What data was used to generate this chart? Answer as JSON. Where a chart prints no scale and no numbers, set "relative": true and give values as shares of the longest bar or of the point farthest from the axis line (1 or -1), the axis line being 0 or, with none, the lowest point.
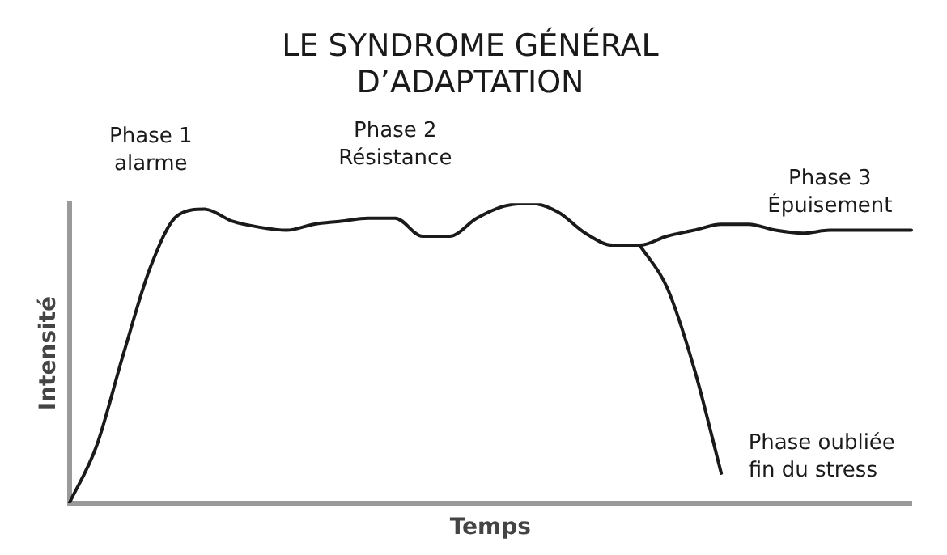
{
  "chart_data": {
    "type": "line",
    "title": "LE SYNDROME GÉNÉRAL\nD’ADAPTATION",
    "xlabel": "Temps",
    "ylabel": "Intensité",
    "relative": true,
    "grid": false,
    "legend": false,
    "marker": "none",
    "line_style": "solid",
    "categories": [
      null,
      null,
      null,
      null,
      null,
      null,
      null,
      null,
      null,
      null,
      null,
      null,
      null,
      null,
      null,
      null,
      null,
      null,
      null,
      null,
      null,
      null,
      null,
      null,
      null,
      null,
      null,
      null,
      null,
      null,
      null,
      null
    ],
    "series": [
      {
        "color": "#1a1a1a",
        "values": [
          0,
          0.19,
          0.5,
          0.79,
          0.96,
          0.98,
          0.94,
          0.92,
          0.91,
          0.93,
          0.94,
          0.95,
          0.95,
          0.89,
          0.89,
          0.95,
          0.99,
          1,
          0.97,
          0.9,
          0.86,
          0.86,
          0.89,
          0.91,
          0.93,
          0.93,
          0.91,
          0.9,
          0.91,
          0.91,
          0.91,
          0.91
        ]
      },
      {
        "color": "#1a1a1a",
        "values": [
          null,
          null,
          null,
          null,
          null,
          null,
          null,
          null,
          null,
          null,
          null,
          null,
          null,
          null,
          null,
          null,
          null,
          null,
          null,
          null,
          null,
          0.86,
          0.72,
          0.45,
          0.1,
          null,
          null,
          null,
          null,
          null,
          null,
          null
        ]
      }
    ],
    "annotations": [
      "Phase 1\nalarme",
      "Phase 2\nRésistance",
      "Phase 3\nÉpuisement",
      "Phase oubliée\nfin du stress"
    ]
  }
}
